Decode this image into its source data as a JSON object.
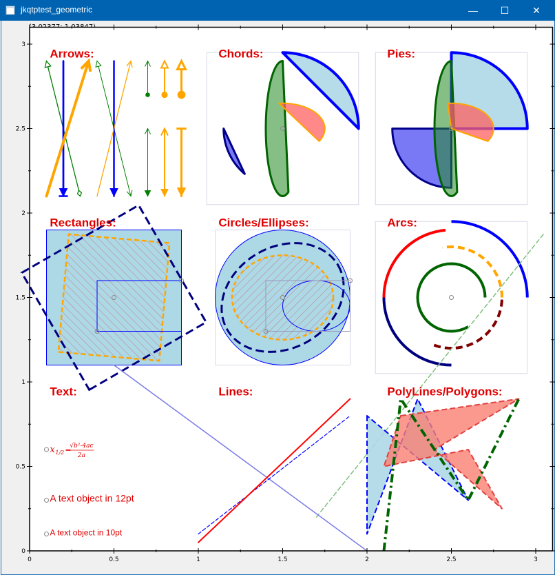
{
  "window": {
    "title": "jkqtptest_geometric",
    "controls": {
      "minimize": "—",
      "maximize": "☐",
      "close": "✕"
    }
  },
  "coord_readout": "(3.02377; 1.03847)",
  "chart_data": {
    "type": "geometric",
    "xlim": [
      0,
      3.1
    ],
    "ylim": [
      0,
      3.1
    ],
    "x_ticks": [
      "0",
      "0.5",
      "1",
      "1.5",
      "2",
      "2.5",
      "3"
    ],
    "y_ticks": [
      "0",
      "0.5",
      "1",
      "1.5",
      "2",
      "2.5",
      "3"
    ],
    "grid": false,
    "panel_titles": {
      "arrows": "Arrows:",
      "chords": "Chords:",
      "pies": "Pies:",
      "rectangles": "Rectangles:",
      "circles": "Circles/Ellipses:",
      "arcs": "Arcs:",
      "text": "Text:",
      "lines": "Lines:",
      "polylines": "PolyLines/Polygons:"
    },
    "text_objects": {
      "formula": {
        "lhs": "x",
        "sub": "1/2",
        "eq": "=",
        "numer": "√b²-4ac",
        "denom": "2a"
      },
      "text12": "A text object in 12pt",
      "text10": "A text object in 10pt"
    },
    "colors": {
      "title": "#e00000",
      "blue": "#0000ff",
      "orange": "#ffa500",
      "green": "#008000",
      "lightblue": "#add8e6",
      "navy": "#00007f",
      "darkred": "#800000",
      "darkgreen": "#006400",
      "salmon": "#fa8072"
    }
  }
}
